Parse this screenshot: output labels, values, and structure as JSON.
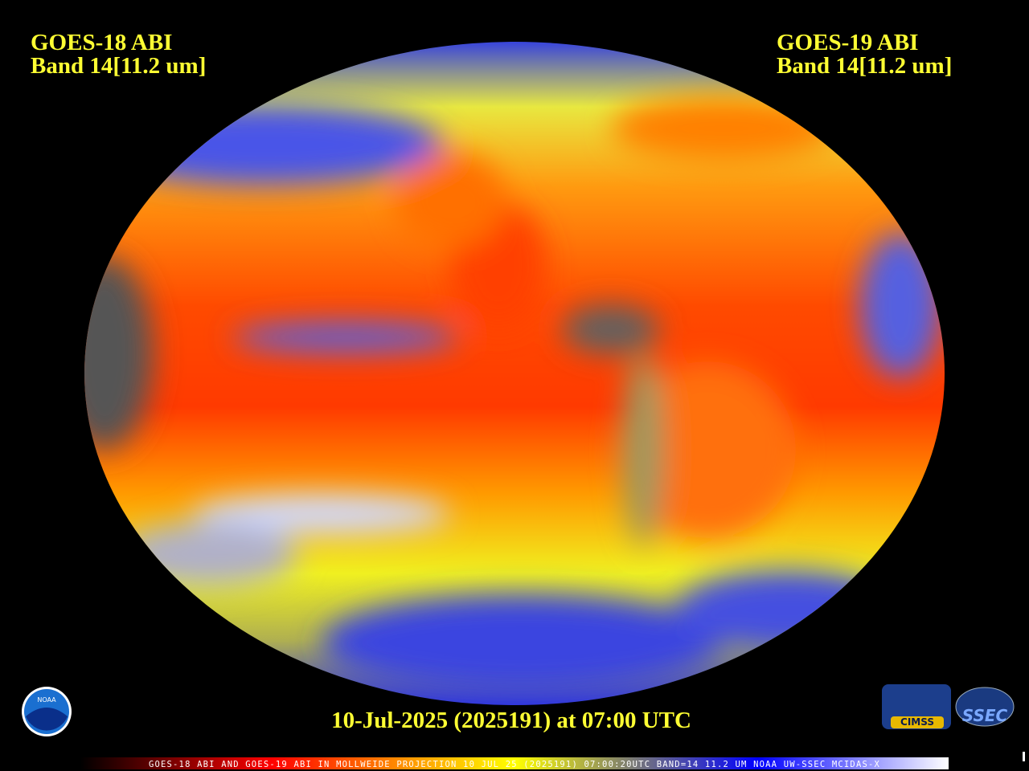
{
  "header_left": {
    "line1": "GOES-18 ABI",
    "line2": "Band 14[11.2 um]"
  },
  "header_right": {
    "line1": "GOES-19 ABI",
    "line2": "Band 14[11.2 um]"
  },
  "timestamp": "10-Jul-2025 (2025191) at 07:00 UTC",
  "caption": "GOES-18 ABI AND GOES-19 ABI IN MOLLWEIDE PROJECTION 10 JUL 25 (2025191) 07:00:20UTC BAND=14 11.2 UM NOAA UW-SSEC MCIDAS-X",
  "logos": {
    "noaa": "NOAA",
    "cimss": "CIMSS",
    "ssec": "SSEC"
  }
}
